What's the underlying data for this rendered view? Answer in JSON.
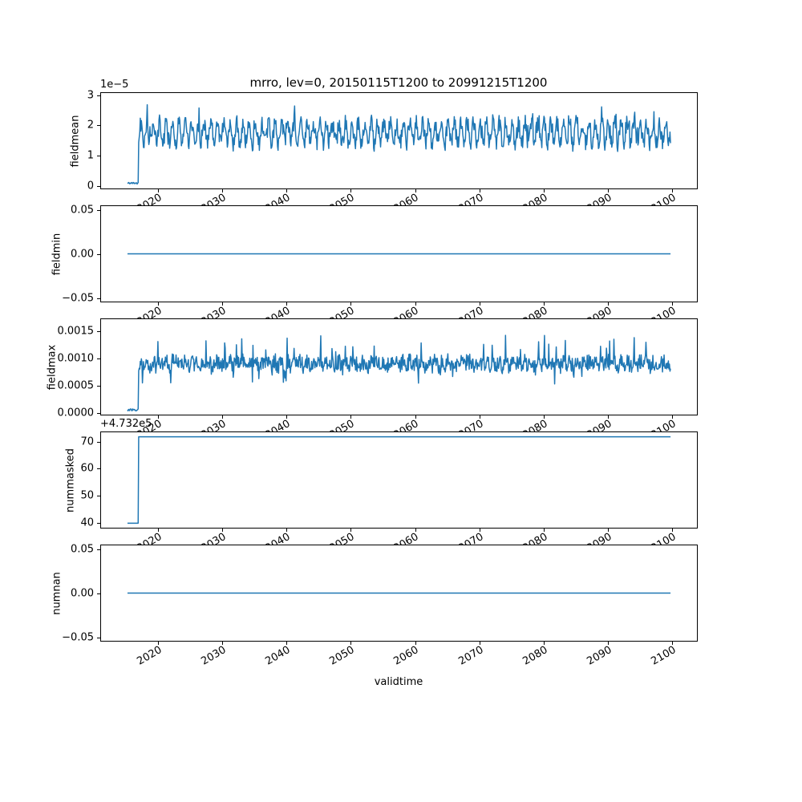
{
  "chart_data": {
    "type": "line",
    "title": "mrro, lev=0, 20150115T1200 to 20991215T1200",
    "xlabel": "validtime",
    "line_color": "#1f77b4",
    "background_color": "#ffffff",
    "x": {
      "lim": [
        2011,
        2104
      ],
      "ticks": [
        2020,
        2030,
        2040,
        2050,
        2060,
        2070,
        2080,
        2090,
        2100
      ],
      "tick_labels": [
        "2020",
        "2030",
        "2040",
        "2050",
        "2060",
        "2070",
        "2080",
        "2090",
        "2100"
      ],
      "data_start": 2015.042,
      "data_end": 2099.958,
      "samples_per_year": 12,
      "tick_rotation_deg": 30
    },
    "subplots": [
      {
        "ylabel": "fieldmean",
        "offset_text": "1e−5",
        "value_scale": "1e-5",
        "ylim": [
          -0.12,
          3.1
        ],
        "ytick_values": [
          0,
          1,
          2,
          3
        ],
        "ytick_labels": [
          "0",
          "1",
          "2",
          "3"
        ],
        "series": {
          "kind": "seasonal_noise",
          "seed": 42,
          "pre_break_value": 0.06,
          "break_year": 2016.8,
          "mean": 1.75,
          "seasonal_amp": 0.35,
          "noise_amp": 0.28,
          "spike_prob": 0.1,
          "spike_amp": 0.4,
          "min": 1.05,
          "max": 2.95
        },
        "summary": "Near 0 (about 0.05e-5) during 2015-2016, then noisy quasi-annual oscillation between about 1.1e-5 and 2.9e-5 through 2100"
      },
      {
        "ylabel": "fieldmin",
        "ylim": [
          -0.055,
          0.055
        ],
        "ytick_values": [
          -0.05,
          0,
          0.05
        ],
        "ytick_labels": [
          "−0.05",
          "0.00",
          "0.05"
        ],
        "series": {
          "kind": "constant",
          "seed": 1,
          "value": 0
        },
        "summary": "Constant 0.00 for the whole period"
      },
      {
        "ylabel": "fieldmax",
        "ylim": [
          -5e-05,
          0.00173
        ],
        "ytick_values": [
          0,
          0.0005,
          0.001,
          0.0015
        ],
        "ytick_labels": [
          "0.0000",
          "0.0005",
          "0.0010",
          "0.0015"
        ],
        "series": {
          "kind": "seasonal_noise",
          "seed": 77,
          "pre_break_value": 4e-05,
          "break_year": 2016.8,
          "mean": 0.0009,
          "seasonal_amp": 5e-05,
          "noise_amp": 0.00014,
          "spike_prob": 0.05,
          "spike_amp": 0.00045,
          "dip_prob": 0.03,
          "dip_amp": 0.0003,
          "min": 0.00045,
          "max": 0.00168
        },
        "summary": "Near 0 during 2015-2016, then noisy values around 0.0009 with spikes up to about 0.0016 and dips to about 0.0005"
      },
      {
        "ylabel": "nummasked",
        "offset_text": "+4.732e5",
        "ylim": [
          37.8,
          73.7
        ],
        "ytick_values": [
          40,
          50,
          60,
          70
        ],
        "ytick_labels": [
          "40",
          "50",
          "60",
          "70"
        ],
        "series": {
          "kind": "step",
          "seed": 2,
          "pre_break_value": 39.5,
          "break_year": 2016.8,
          "value": 72
        },
        "summary": "About 473239.5 during 2015-2016, then steps up to a constant 473272 (offset +4.732e5)"
      },
      {
        "ylabel": "numnan",
        "ylim": [
          -0.055,
          0.055
        ],
        "ytick_values": [
          -0.05,
          0,
          0.05
        ],
        "ytick_labels": [
          "−0.05",
          "0.00",
          "0.05"
        ],
        "series": {
          "kind": "constant",
          "seed": 3,
          "value": 0
        },
        "summary": "Constant 0.00 for the whole period"
      }
    ]
  }
}
